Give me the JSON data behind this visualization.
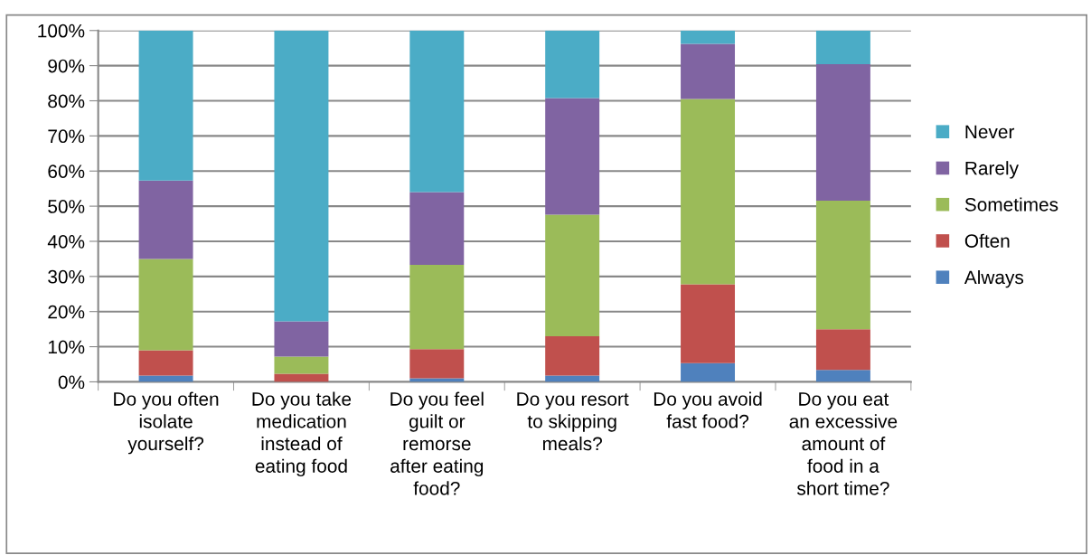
{
  "chart_data": {
    "type": "bar",
    "stacked": true,
    "categories": [
      "Do you often\nisolate\nyourself?",
      "Do you take\nmedication\ninstead of\neating food",
      "Do you feel\nguilt or\nremorse\nafter eating\nfood?",
      "Do you resort\nto skipping\nmeals?",
      "Do you avoid\nfast food?",
      "Do you eat\nan excessive\namount of\nfood in a\nshort time?"
    ],
    "series": [
      {
        "name": "Always",
        "color": "#4f81bd",
        "values": [
          1.8,
          0,
          1.0,
          1.8,
          5.3,
          3.4
        ]
      },
      {
        "name": "Often",
        "color": "#c0504d",
        "values": [
          7.2,
          2.3,
          8.3,
          11.2,
          22.5,
          11.6
        ]
      },
      {
        "name": "Sometimes",
        "color": "#9bbb59",
        "values": [
          26,
          4.9,
          24,
          34.6,
          52.7,
          36.6
        ]
      },
      {
        "name": "Rarely",
        "color": "#8064a2",
        "values": [
          22.3,
          10,
          20.7,
          33.2,
          15.7,
          38.8
        ]
      },
      {
        "name": "Never",
        "color": "#4bacc6",
        "values": [
          42.7,
          82.8,
          46,
          19.2,
          3.8,
          9.6
        ]
      }
    ],
    "ylim": [
      0,
      100
    ],
    "yticks": [
      {
        "value": 0,
        "label": "0%"
      },
      {
        "value": 10,
        "label": "10%"
      },
      {
        "value": 20,
        "label": "20%"
      },
      {
        "value": 30,
        "label": "30%"
      },
      {
        "value": 40,
        "label": "40%"
      },
      {
        "value": 50,
        "label": "50%"
      },
      {
        "value": 60,
        "label": "60%"
      },
      {
        "value": 70,
        "label": "70%"
      },
      {
        "value": 80,
        "label": "80%"
      },
      {
        "value": 90,
        "label": "90%"
      },
      {
        "value": 100,
        "label": "100%"
      }
    ],
    "grid": "y",
    "legend": "right"
  }
}
